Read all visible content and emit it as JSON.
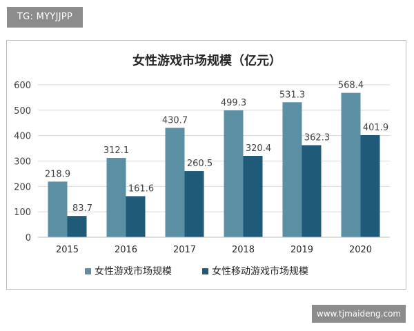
{
  "tag_label": "TG: MYYJJPP",
  "watermark_label": "www.tjmaideng.com",
  "colors": {
    "series_1": "#5b8fa3",
    "series_2": "#1f5a78",
    "axis": "#bfbfbf",
    "grid": "#d9d9d9"
  },
  "chart_data": {
    "type": "bar",
    "title": "女性游戏市场规模（亿元）",
    "xlabel": "",
    "ylabel": "",
    "categories": [
      "2015",
      "2016",
      "2017",
      "2018",
      "2019",
      "2020"
    ],
    "series": [
      {
        "name": "女性游戏市场规模",
        "values": [
          218.9,
          312.1,
          430.7,
          499.3,
          531.3,
          568.4
        ],
        "labels": [
          "218.9",
          "312.1",
          "430.7",
          "499.3",
          "531.3",
          "568.4"
        ]
      },
      {
        "name": "女性移动游戏市场规模",
        "values": [
          83.7,
          161.6,
          260.5,
          320.4,
          362.3,
          401.9
        ],
        "labels": [
          "83.7",
          "161.6",
          "260.5",
          "320.4",
          "362.3",
          "401.9"
        ]
      }
    ],
    "ylim": [
      0,
      600
    ],
    "yticks": [
      "0",
      "100",
      "200",
      "300",
      "400",
      "500",
      "600"
    ],
    "grid": true,
    "legend_position": "bottom"
  }
}
